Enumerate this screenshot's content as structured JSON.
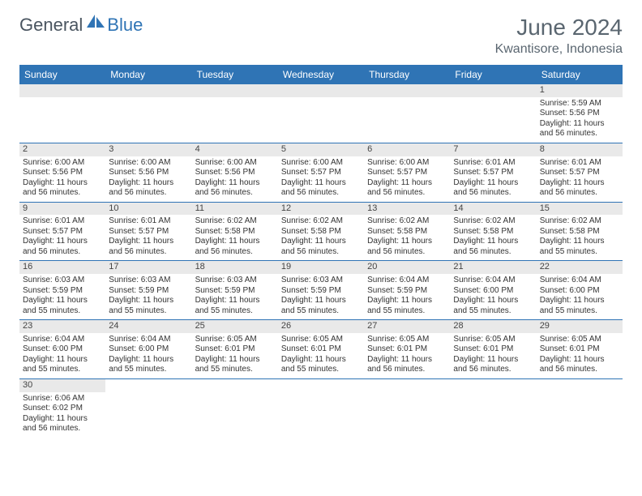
{
  "logo": {
    "part1": "General",
    "part2": "Blue"
  },
  "title": "June 2024",
  "location": "Kwantisore, Indonesia",
  "colors": {
    "header_bg": "#2f74b5",
    "header_text": "#ffffff",
    "daynum_bg": "#e9e9e9",
    "border": "#2f74b5",
    "text": "#333333",
    "title_text": "#5a6670"
  },
  "day_names": [
    "Sunday",
    "Monday",
    "Tuesday",
    "Wednesday",
    "Thursday",
    "Friday",
    "Saturday"
  ],
  "weeks": [
    [
      {
        "n": null
      },
      {
        "n": null
      },
      {
        "n": null
      },
      {
        "n": null
      },
      {
        "n": null
      },
      {
        "n": null
      },
      {
        "n": "1",
        "sunrise": "Sunrise: 5:59 AM",
        "sunset": "Sunset: 5:56 PM",
        "daylight1": "Daylight: 11 hours",
        "daylight2": "and 56 minutes."
      }
    ],
    [
      {
        "n": "2",
        "sunrise": "Sunrise: 6:00 AM",
        "sunset": "Sunset: 5:56 PM",
        "daylight1": "Daylight: 11 hours",
        "daylight2": "and 56 minutes."
      },
      {
        "n": "3",
        "sunrise": "Sunrise: 6:00 AM",
        "sunset": "Sunset: 5:56 PM",
        "daylight1": "Daylight: 11 hours",
        "daylight2": "and 56 minutes."
      },
      {
        "n": "4",
        "sunrise": "Sunrise: 6:00 AM",
        "sunset": "Sunset: 5:56 PM",
        "daylight1": "Daylight: 11 hours",
        "daylight2": "and 56 minutes."
      },
      {
        "n": "5",
        "sunrise": "Sunrise: 6:00 AM",
        "sunset": "Sunset: 5:57 PM",
        "daylight1": "Daylight: 11 hours",
        "daylight2": "and 56 minutes."
      },
      {
        "n": "6",
        "sunrise": "Sunrise: 6:00 AM",
        "sunset": "Sunset: 5:57 PM",
        "daylight1": "Daylight: 11 hours",
        "daylight2": "and 56 minutes."
      },
      {
        "n": "7",
        "sunrise": "Sunrise: 6:01 AM",
        "sunset": "Sunset: 5:57 PM",
        "daylight1": "Daylight: 11 hours",
        "daylight2": "and 56 minutes."
      },
      {
        "n": "8",
        "sunrise": "Sunrise: 6:01 AM",
        "sunset": "Sunset: 5:57 PM",
        "daylight1": "Daylight: 11 hours",
        "daylight2": "and 56 minutes."
      }
    ],
    [
      {
        "n": "9",
        "sunrise": "Sunrise: 6:01 AM",
        "sunset": "Sunset: 5:57 PM",
        "daylight1": "Daylight: 11 hours",
        "daylight2": "and 56 minutes."
      },
      {
        "n": "10",
        "sunrise": "Sunrise: 6:01 AM",
        "sunset": "Sunset: 5:57 PM",
        "daylight1": "Daylight: 11 hours",
        "daylight2": "and 56 minutes."
      },
      {
        "n": "11",
        "sunrise": "Sunrise: 6:02 AM",
        "sunset": "Sunset: 5:58 PM",
        "daylight1": "Daylight: 11 hours",
        "daylight2": "and 56 minutes."
      },
      {
        "n": "12",
        "sunrise": "Sunrise: 6:02 AM",
        "sunset": "Sunset: 5:58 PM",
        "daylight1": "Daylight: 11 hours",
        "daylight2": "and 56 minutes."
      },
      {
        "n": "13",
        "sunrise": "Sunrise: 6:02 AM",
        "sunset": "Sunset: 5:58 PM",
        "daylight1": "Daylight: 11 hours",
        "daylight2": "and 56 minutes."
      },
      {
        "n": "14",
        "sunrise": "Sunrise: 6:02 AM",
        "sunset": "Sunset: 5:58 PM",
        "daylight1": "Daylight: 11 hours",
        "daylight2": "and 56 minutes."
      },
      {
        "n": "15",
        "sunrise": "Sunrise: 6:02 AM",
        "sunset": "Sunset: 5:58 PM",
        "daylight1": "Daylight: 11 hours",
        "daylight2": "and 55 minutes."
      }
    ],
    [
      {
        "n": "16",
        "sunrise": "Sunrise: 6:03 AM",
        "sunset": "Sunset: 5:59 PM",
        "daylight1": "Daylight: 11 hours",
        "daylight2": "and 55 minutes."
      },
      {
        "n": "17",
        "sunrise": "Sunrise: 6:03 AM",
        "sunset": "Sunset: 5:59 PM",
        "daylight1": "Daylight: 11 hours",
        "daylight2": "and 55 minutes."
      },
      {
        "n": "18",
        "sunrise": "Sunrise: 6:03 AM",
        "sunset": "Sunset: 5:59 PM",
        "daylight1": "Daylight: 11 hours",
        "daylight2": "and 55 minutes."
      },
      {
        "n": "19",
        "sunrise": "Sunrise: 6:03 AM",
        "sunset": "Sunset: 5:59 PM",
        "daylight1": "Daylight: 11 hours",
        "daylight2": "and 55 minutes."
      },
      {
        "n": "20",
        "sunrise": "Sunrise: 6:04 AM",
        "sunset": "Sunset: 5:59 PM",
        "daylight1": "Daylight: 11 hours",
        "daylight2": "and 55 minutes."
      },
      {
        "n": "21",
        "sunrise": "Sunrise: 6:04 AM",
        "sunset": "Sunset: 6:00 PM",
        "daylight1": "Daylight: 11 hours",
        "daylight2": "and 55 minutes."
      },
      {
        "n": "22",
        "sunrise": "Sunrise: 6:04 AM",
        "sunset": "Sunset: 6:00 PM",
        "daylight1": "Daylight: 11 hours",
        "daylight2": "and 55 minutes."
      }
    ],
    [
      {
        "n": "23",
        "sunrise": "Sunrise: 6:04 AM",
        "sunset": "Sunset: 6:00 PM",
        "daylight1": "Daylight: 11 hours",
        "daylight2": "and 55 minutes."
      },
      {
        "n": "24",
        "sunrise": "Sunrise: 6:04 AM",
        "sunset": "Sunset: 6:00 PM",
        "daylight1": "Daylight: 11 hours",
        "daylight2": "and 55 minutes."
      },
      {
        "n": "25",
        "sunrise": "Sunrise: 6:05 AM",
        "sunset": "Sunset: 6:01 PM",
        "daylight1": "Daylight: 11 hours",
        "daylight2": "and 55 minutes."
      },
      {
        "n": "26",
        "sunrise": "Sunrise: 6:05 AM",
        "sunset": "Sunset: 6:01 PM",
        "daylight1": "Daylight: 11 hours",
        "daylight2": "and 55 minutes."
      },
      {
        "n": "27",
        "sunrise": "Sunrise: 6:05 AM",
        "sunset": "Sunset: 6:01 PM",
        "daylight1": "Daylight: 11 hours",
        "daylight2": "and 56 minutes."
      },
      {
        "n": "28",
        "sunrise": "Sunrise: 6:05 AM",
        "sunset": "Sunset: 6:01 PM",
        "daylight1": "Daylight: 11 hours",
        "daylight2": "and 56 minutes."
      },
      {
        "n": "29",
        "sunrise": "Sunrise: 6:05 AM",
        "sunset": "Sunset: 6:01 PM",
        "daylight1": "Daylight: 11 hours",
        "daylight2": "and 56 minutes."
      }
    ],
    [
      {
        "n": "30",
        "sunrise": "Sunrise: 6:06 AM",
        "sunset": "Sunset: 6:02 PM",
        "daylight1": "Daylight: 11 hours",
        "daylight2": "and 56 minutes."
      },
      {
        "n": null
      },
      {
        "n": null
      },
      {
        "n": null
      },
      {
        "n": null
      },
      {
        "n": null
      },
      {
        "n": null
      }
    ]
  ]
}
